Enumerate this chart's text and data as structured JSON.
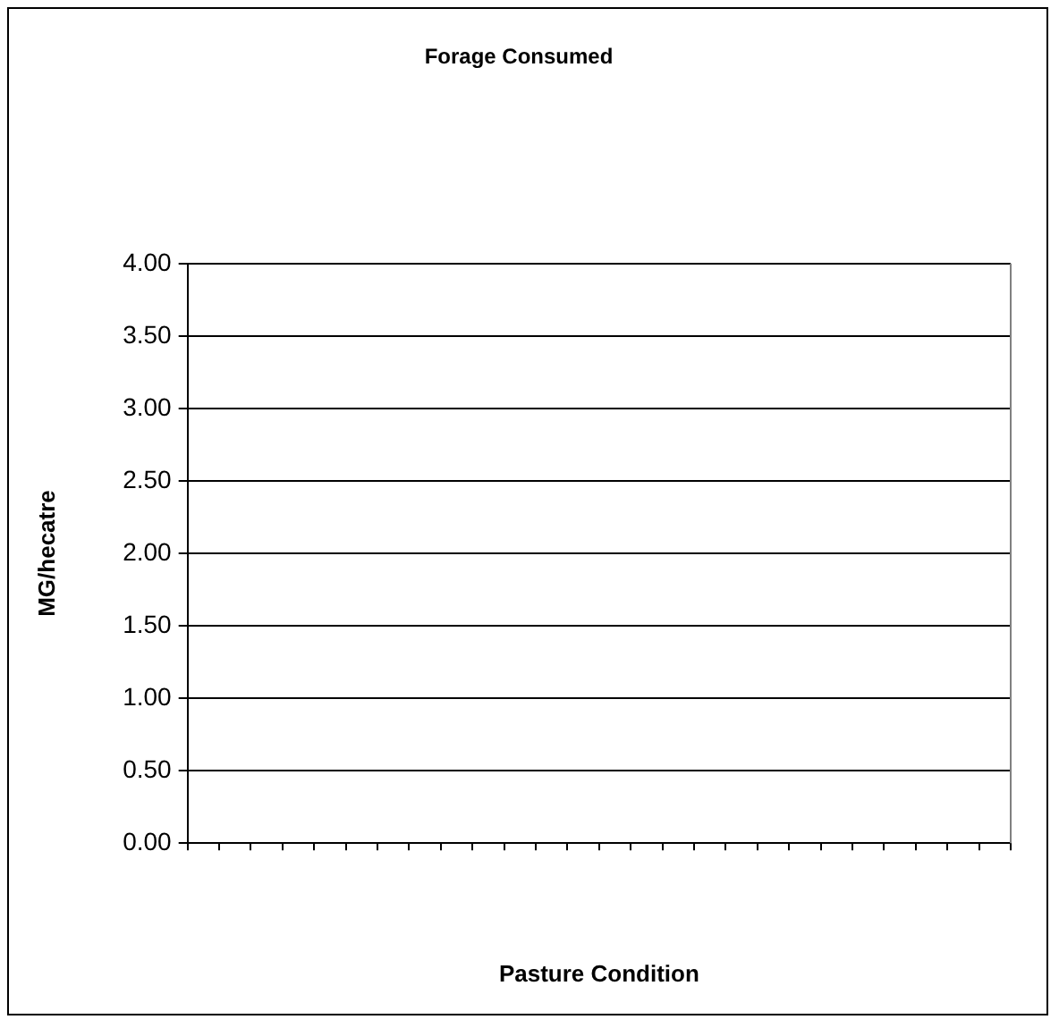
{
  "chart_data": {
    "type": "bar",
    "title": "Forage Consumed",
    "xlabel": "Pasture Condition",
    "ylabel": "MG/hecatre",
    "categories": [
      null,
      null,
      null,
      null,
      null,
      null,
      null,
      null,
      null,
      null,
      null,
      null,
      null,
      null,
      null,
      null,
      null,
      null,
      null,
      null,
      null,
      null,
      null,
      null,
      null,
      null
    ],
    "values": [
      null,
      null,
      null,
      null,
      null,
      null,
      null,
      null,
      null,
      null,
      null,
      null,
      null,
      null,
      null,
      null,
      null,
      null,
      null,
      null,
      null,
      null,
      null,
      null,
      null,
      null
    ],
    "ylim": [
      0,
      4
    ],
    "yticks": [
      {
        "value": 0,
        "label": "0.00"
      },
      {
        "value": 0.5,
        "label": "0.50"
      },
      {
        "value": 1,
        "label": "1.00"
      },
      {
        "value": 1.5,
        "label": "1.50"
      },
      {
        "value": 2,
        "label": "2.00"
      },
      {
        "value": 2.5,
        "label": "2.50"
      },
      {
        "value": 3,
        "label": "3.00"
      },
      {
        "value": 3.5,
        "label": "3.50"
      },
      {
        "value": 4,
        "label": "4.00"
      }
    ],
    "grid": "y",
    "legend": false
  }
}
